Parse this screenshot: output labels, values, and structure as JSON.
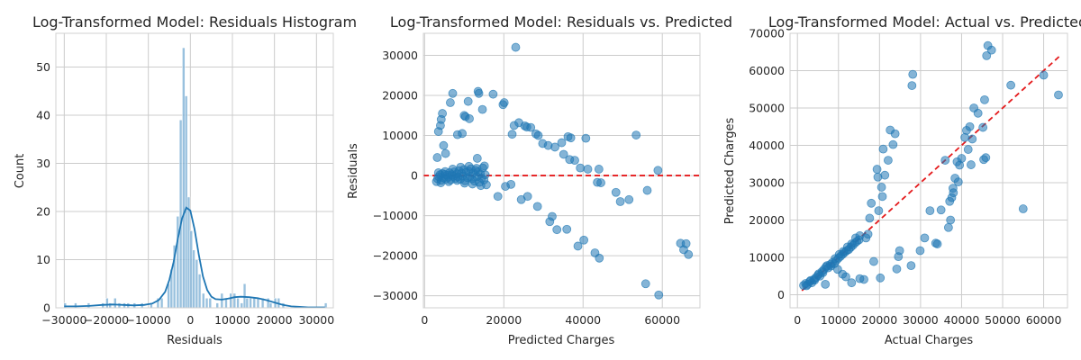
{
  "chart_data": [
    {
      "type": "histogram",
      "title": "Log-Transformed Model: Residuals Histogram",
      "xlabel": "Residuals",
      "ylabel": "Count",
      "xlim": [
        -32000,
        34000
      ],
      "ylim": [
        0,
        57
      ],
      "xticks": [
        -30000,
        -20000,
        -10000,
        0,
        10000,
        20000,
        30000
      ],
      "yticks": [
        0,
        10,
        20,
        30,
        40,
        50
      ],
      "grid": true,
      "bar_color": "#7fb1d6",
      "kde_color": "#1f77b4",
      "bins": [
        [
          -29800,
          1
        ],
        [
          -27300,
          1
        ],
        [
          -24200,
          1
        ],
        [
          -20800,
          1
        ],
        [
          -19800,
          2
        ],
        [
          -19100,
          1
        ],
        [
          -17900,
          2
        ],
        [
          -16900,
          1
        ],
        [
          -15700,
          1
        ],
        [
          -14800,
          1
        ],
        [
          -13300,
          1
        ],
        [
          -11500,
          1
        ],
        [
          -9300,
          1
        ],
        [
          -7700,
          2
        ],
        [
          -6800,
          2
        ],
        [
          -5200,
          5
        ],
        [
          -4500,
          8
        ],
        [
          -3800,
          13
        ],
        [
          -3000,
          19
        ],
        [
          -2300,
          39
        ],
        [
          -1600,
          54
        ],
        [
          -1000,
          44
        ],
        [
          -400,
          23
        ],
        [
          200,
          16
        ],
        [
          800,
          12
        ],
        [
          1500,
          10
        ],
        [
          2200,
          7
        ],
        [
          3100,
          3
        ],
        [
          3900,
          2
        ],
        [
          4700,
          2
        ],
        [
          6400,
          1
        ],
        [
          7500,
          3
        ],
        [
          8500,
          2
        ],
        [
          9600,
          3
        ],
        [
          10500,
          3
        ],
        [
          11300,
          2
        ],
        [
          12200,
          1
        ],
        [
          12900,
          5
        ],
        [
          13500,
          2
        ],
        [
          14300,
          2
        ],
        [
          15200,
          2
        ],
        [
          16100,
          2
        ],
        [
          17200,
          2
        ],
        [
          18500,
          2
        ],
        [
          19100,
          1
        ],
        [
          20200,
          2
        ],
        [
          21000,
          2
        ],
        [
          22100,
          1
        ],
        [
          32200,
          1
        ]
      ],
      "kde": [
        [
          -30000,
          0.3
        ],
        [
          -27000,
          0.3
        ],
        [
          -24000,
          0.4
        ],
        [
          -21000,
          0.6
        ],
        [
          -18500,
          0.7
        ],
        [
          -16000,
          0.6
        ],
        [
          -13500,
          0.5
        ],
        [
          -11000,
          0.6
        ],
        [
          -9000,
          0.9
        ],
        [
          -7500,
          1.6
        ],
        [
          -6000,
          3.3
        ],
        [
          -5000,
          5.8
        ],
        [
          -4000,
          9.5
        ],
        [
          -3000,
          14.2
        ],
        [
          -2000,
          18.5
        ],
        [
          -1000,
          20.8
        ],
        [
          0,
          20.2
        ],
        [
          1000,
          16.3
        ],
        [
          2000,
          11.0
        ],
        [
          3000,
          6.5
        ],
        [
          4000,
          3.7
        ],
        [
          5000,
          2.3
        ],
        [
          6000,
          1.8
        ],
        [
          7500,
          1.7
        ],
        [
          9000,
          1.9
        ],
        [
          10500,
          2.2
        ],
        [
          12000,
          2.3
        ],
        [
          14000,
          2.2
        ],
        [
          16000,
          2.0
        ],
        [
          18000,
          1.6
        ],
        [
          20000,
          1.1
        ],
        [
          22000,
          0.6
        ],
        [
          24000,
          0.3
        ],
        [
          26000,
          0.2
        ],
        [
          28000,
          0.1
        ],
        [
          30000,
          0.1
        ],
        [
          32000,
          0.1
        ]
      ]
    },
    {
      "type": "scatter",
      "title": "Log-Transformed Model: Residuals vs. Predicted",
      "xlabel": "Predicted Charges",
      "ylabel": "Residuals",
      "xlim": [
        -300,
        69500
      ],
      "ylim": [
        -33000,
        35500
      ],
      "xticks": [
        0,
        20000,
        40000,
        60000
      ],
      "yticks": [
        -30000,
        -20000,
        -10000,
        0,
        10000,
        20000,
        30000
      ],
      "grid": true,
      "point_color": "#1f77b4",
      "reference_line": {
        "y": 0,
        "color": "#e41a1c",
        "style": "dashed"
      },
      "points": [
        [
          3000,
          -1500
        ],
        [
          3300,
          -800
        ],
        [
          3600,
          -300
        ],
        [
          3900,
          200
        ],
        [
          4200,
          -1200
        ],
        [
          4500,
          500
        ],
        [
          4800,
          -600
        ],
        [
          5100,
          300
        ],
        [
          5400,
          -900
        ],
        [
          5700,
          100
        ],
        [
          6000,
          -400
        ],
        [
          6300,
          700
        ],
        [
          6600,
          -1100
        ],
        [
          6900,
          200
        ],
        [
          7200,
          -200
        ],
        [
          7500,
          900
        ],
        [
          7800,
          -700
        ],
        [
          8100,
          400
        ],
        [
          8400,
          -300
        ],
        [
          8700,
          1200
        ],
        [
          9000,
          -900
        ],
        [
          9300,
          600
        ],
        [
          9600,
          -100
        ],
        [
          9900,
          1500
        ],
        [
          10200,
          -1300
        ],
        [
          10500,
          800
        ],
        [
          10800,
          -500
        ],
        [
          11100,
          1100
        ],
        [
          11400,
          -200
        ],
        [
          11700,
          1700
        ],
        [
          12000,
          -800
        ],
        [
          12300,
          600
        ],
        [
          12600,
          -1400
        ],
        [
          12900,
          1300
        ],
        [
          13200,
          -300
        ],
        [
          13500,
          900
        ],
        [
          13800,
          -1700
        ],
        [
          14100,
          400
        ],
        [
          14400,
          -600
        ],
        [
          14700,
          1900
        ],
        [
          15000,
          -1100
        ],
        [
          15300,
          200
        ],
        [
          15600,
          -2300
        ],
        [
          3500,
          700
        ],
        [
          4100,
          -1800
        ],
        [
          5200,
          1000
        ],
        [
          6100,
          -1500
        ],
        [
          7100,
          1600
        ],
        [
          8200,
          -1200
        ],
        [
          9100,
          2100
        ],
        [
          10100,
          -1900
        ],
        [
          11200,
          2300
        ],
        [
          12100,
          -2100
        ],
        [
          13100,
          1800
        ],
        [
          14200,
          -2500
        ],
        [
          15100,
          2400
        ],
        [
          3200,
          4500
        ],
        [
          3500,
          11000
        ],
        [
          4000,
          12500
        ],
        [
          4200,
          14000
        ],
        [
          4500,
          15500
        ],
        [
          4800,
          7500
        ],
        [
          5300,
          5500
        ],
        [
          6500,
          18200
        ],
        [
          7100,
          20500
        ],
        [
          8300,
          10200
        ],
        [
          9500,
          10500
        ],
        [
          10000,
          15000
        ],
        [
          10300,
          14700
        ],
        [
          11000,
          18500
        ],
        [
          11300,
          14200
        ],
        [
          13300,
          4300
        ],
        [
          13500,
          21000
        ],
        [
          13700,
          20500
        ],
        [
          14600,
          16500
        ],
        [
          17300,
          20300
        ],
        [
          18500,
          -5200
        ],
        [
          19800,
          17700
        ],
        [
          20100,
          18200
        ],
        [
          20400,
          -2700
        ],
        [
          21800,
          -2200
        ],
        [
          22100,
          10300
        ],
        [
          22600,
          12500
        ],
        [
          23000,
          32000
        ],
        [
          23800,
          13200
        ],
        [
          24400,
          -6000
        ],
        [
          25300,
          12400
        ],
        [
          25800,
          12100
        ],
        [
          26000,
          -5200
        ],
        [
          26800,
          12000
        ],
        [
          28100,
          10400
        ],
        [
          28500,
          -7700
        ],
        [
          28700,
          10000
        ],
        [
          29800,
          8000
        ],
        [
          31200,
          7500
        ],
        [
          31600,
          -11500
        ],
        [
          32200,
          -10200
        ],
        [
          32900,
          7100
        ],
        [
          33400,
          -13500
        ],
        [
          34600,
          8200
        ],
        [
          35100,
          5300
        ],
        [
          35900,
          -13400
        ],
        [
          36200,
          9700
        ],
        [
          36600,
          4000
        ],
        [
          36900,
          9400
        ],
        [
          37900,
          3800
        ],
        [
          38700,
          -17600
        ],
        [
          39300,
          1900
        ],
        [
          40200,
          -16100
        ],
        [
          40700,
          9300
        ],
        [
          41200,
          1600
        ],
        [
          43000,
          -19300
        ],
        [
          43600,
          -1700
        ],
        [
          44000,
          1600
        ],
        [
          44100,
          -20600
        ],
        [
          44500,
          -1800
        ],
        [
          48300,
          -4200
        ],
        [
          49400,
          -6500
        ],
        [
          51600,
          -6000
        ],
        [
          53400,
          10100
        ],
        [
          55800,
          -27000
        ],
        [
          56200,
          -3700
        ],
        [
          58900,
          1300
        ],
        [
          59100,
          -29800
        ],
        [
          64600,
          -16900
        ],
        [
          65400,
          -18500
        ],
        [
          66000,
          -17000
        ],
        [
          66600,
          -19700
        ]
      ]
    },
    {
      "type": "scatter",
      "title": "Log-Transformed Model: Actual vs. Predicted",
      "xlabel": "Actual Charges",
      "ylabel": "Predicted Charges",
      "xlim": [
        -1800,
        65800
      ],
      "ylim": [
        -3500,
        70000
      ],
      "xticks": [
        0,
        10000,
        20000,
        30000,
        40000,
        50000,
        60000
      ],
      "yticks": [
        0,
        10000,
        20000,
        30000,
        40000,
        50000,
        60000,
        70000
      ],
      "grid": true,
      "point_color": "#1f77b4",
      "reference_line": {
        "from": [
          1100,
          1100
        ],
        "to": [
          63800,
          63800
        ],
        "color": "#e41a1c",
        "style": "dashed"
      },
      "points": [
        [
          1500,
          2500
        ],
        [
          2000,
          3000
        ],
        [
          2500,
          2800
        ],
        [
          3000,
          3500
        ],
        [
          3500,
          3200
        ],
        [
          4000,
          4100
        ],
        [
          4500,
          4600
        ],
        [
          5000,
          5200
        ],
        [
          5500,
          5000
        ],
        [
          6000,
          6200
        ],
        [
          6500,
          6800
        ],
        [
          7000,
          7500
        ],
        [
          7500,
          7200
        ],
        [
          8000,
          8100
        ],
        [
          8500,
          8600
        ],
        [
          9000,
          8300
        ],
        [
          9500,
          9200
        ],
        [
          10000,
          9800
        ],
        [
          10500,
          10300
        ],
        [
          11000,
          10800
        ],
        [
          11500,
          11300
        ],
        [
          12000,
          11800
        ],
        [
          12500,
          12100
        ],
        [
          13000,
          12700
        ],
        [
          13500,
          13200
        ],
        [
          14000,
          13800
        ],
        [
          14500,
          14300
        ],
        [
          15000,
          14700
        ],
        [
          2200,
          2400
        ],
        [
          3200,
          3800
        ],
        [
          4200,
          3900
        ],
        [
          5200,
          5600
        ],
        [
          6200,
          5900
        ],
        [
          7200,
          7800
        ],
        [
          8200,
          7700
        ],
        [
          9200,
          9700
        ],
        [
          10200,
          10800
        ],
        [
          11200,
          11600
        ],
        [
          12200,
          12800
        ],
        [
          13200,
          13600
        ],
        [
          14200,
          15200
        ],
        [
          15200,
          15800
        ],
        [
          6800,
          2800
        ],
        [
          9800,
          6800
        ],
        [
          11000,
          5500
        ],
        [
          11800,
          4800
        ],
        [
          13200,
          3200
        ],
        [
          15200,
          4300
        ],
        [
          16200,
          4100
        ],
        [
          16700,
          15200
        ],
        [
          17200,
          16200
        ],
        [
          17600,
          20500
        ],
        [
          18000,
          24500
        ],
        [
          18600,
          8900
        ],
        [
          19400,
          33600
        ],
        [
          19600,
          31500
        ],
        [
          19800,
          22500
        ],
        [
          20200,
          4500
        ],
        [
          20500,
          28800
        ],
        [
          20700,
          26300
        ],
        [
          20900,
          39000
        ],
        [
          21300,
          32000
        ],
        [
          22100,
          36000
        ],
        [
          22600,
          44100
        ],
        [
          23300,
          40200
        ],
        [
          23800,
          43100
        ],
        [
          24200,
          6900
        ],
        [
          24600,
          10200
        ],
        [
          24900,
          11800
        ],
        [
          27700,
          7800
        ],
        [
          27900,
          56000
        ],
        [
          28100,
          59000
        ],
        [
          29900,
          11800
        ],
        [
          31000,
          15200
        ],
        [
          32300,
          22500
        ],
        [
          33700,
          13800
        ],
        [
          34100,
          13600
        ],
        [
          35000,
          22700
        ],
        [
          36000,
          36000
        ],
        [
          36800,
          18000
        ],
        [
          37100,
          25000
        ],
        [
          37300,
          20000
        ],
        [
          37600,
          26000
        ],
        [
          37900,
          28500
        ],
        [
          38000,
          27300
        ],
        [
          38400,
          31200
        ],
        [
          38900,
          35600
        ],
        [
          39200,
          30200
        ],
        [
          39500,
          34700
        ],
        [
          40000,
          36500
        ],
        [
          40800,
          42100
        ],
        [
          41200,
          44000
        ],
        [
          41600,
          38900
        ],
        [
          42000,
          45000
        ],
        [
          42300,
          34800
        ],
        [
          42600,
          41700
        ],
        [
          43000,
          50000
        ],
        [
          44000,
          48600
        ],
        [
          45200,
          44800
        ],
        [
          45400,
          36200
        ],
        [
          45600,
          52200
        ],
        [
          45900,
          36700
        ],
        [
          46100,
          64000
        ],
        [
          46400,
          66700
        ],
        [
          47300,
          65500
        ],
        [
          52000,
          56100
        ],
        [
          55000,
          23000
        ],
        [
          60000,
          58800
        ],
        [
          63600,
          53500
        ]
      ]
    }
  ]
}
